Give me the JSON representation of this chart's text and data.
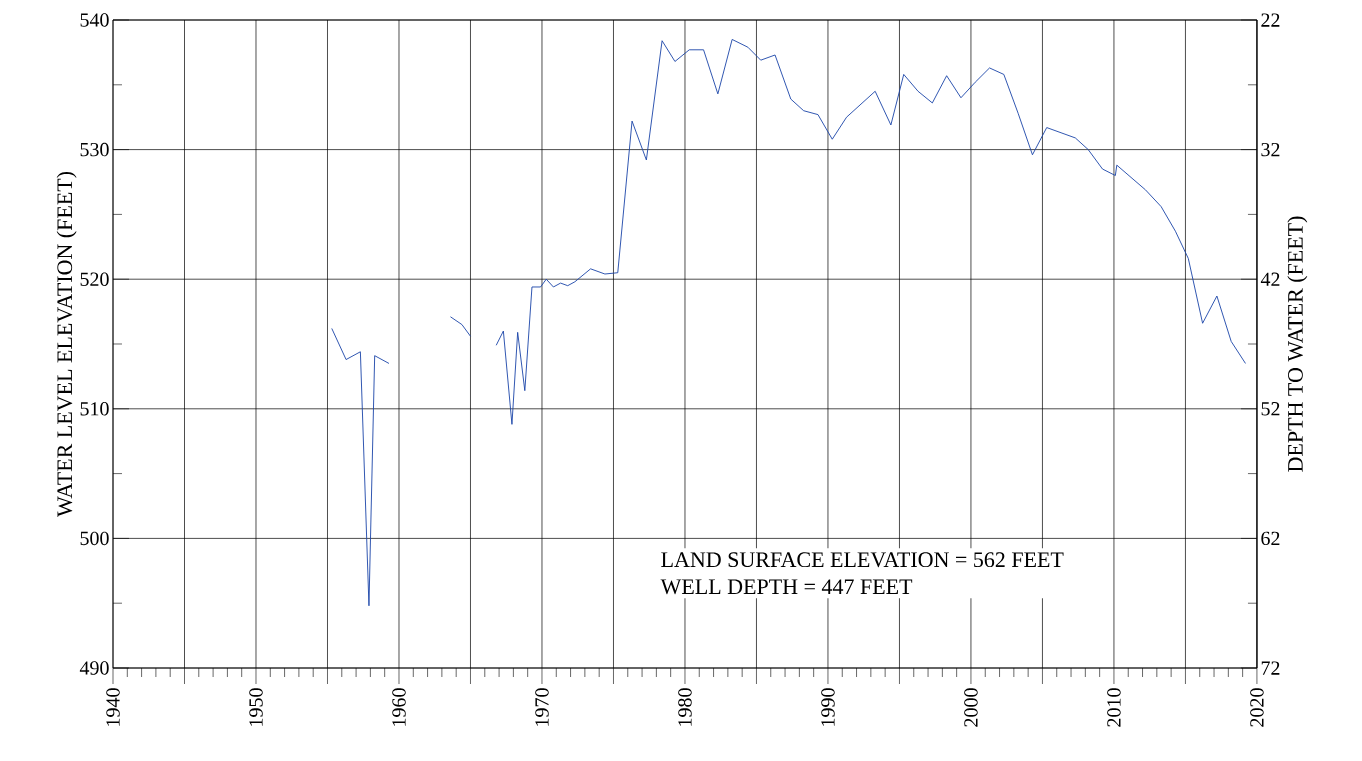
{
  "chart_data": {
    "type": "line",
    "ylabel": "WATER LEVEL ELEVATION (FEET)",
    "y2label": "DEPTH TO WATER (FEET)",
    "annotations": [
      "LAND SURFACE ELEVATION = 562 FEET",
      "WELL DEPTH = 447 FEET"
    ],
    "xlim": [
      1940,
      2020
    ],
    "xticks": [
      1940,
      {
        "value": 1945,
        "label": null
      },
      1950,
      {
        "value": 1955,
        "label": null
      },
      1960,
      {
        "value": 1965,
        "label": null
      },
      1970,
      {
        "value": 1975,
        "label": null
      },
      1980,
      {
        "value": 1985,
        "label": null
      },
      1990,
      {
        "value": 1995,
        "label": null
      },
      2000,
      {
        "value": 2005,
        "label": null
      },
      2010,
      {
        "value": 2015,
        "label": null
      },
      2020
    ],
    "ylim": [
      490,
      540
    ],
    "yticks": [
      490,
      500,
      510,
      520,
      530,
      540
    ],
    "y2lim": [
      72,
      22
    ],
    "y2ticks": [
      22,
      32,
      42,
      52,
      62,
      72
    ],
    "grid": true,
    "x": [
      1955.3,
      1956.3,
      1957.3,
      1957.9,
      1958.3,
      1959.3,
      1961.5,
      1963.6,
      1964.4,
      1965.0,
      1966.0,
      1966.8,
      1967.3,
      1967.9,
      1968.3,
      1968.8,
      1969.3,
      1969.9,
      1970.3,
      1970.8,
      1971.3,
      1971.8,
      1972.3,
      1973.4,
      1974.4,
      1975.3,
      1976.3,
      1977.3,
      1978.4,
      1979.3,
      1980.3,
      1981.3,
      1982.3,
      1983.3,
      1984.4,
      1985.3,
      1986.3,
      1987.4,
      1988.3,
      1989.3,
      1990.3,
      1991.3,
      1993.3,
      1994.4,
      1995.3,
      1996.3,
      1997.3,
      1998.3,
      1999.3,
      2000.3,
      2001.3,
      2002.3,
      2003.3,
      2004.3,
      2005.3,
      2006.3,
      2007.3,
      2008.2,
      2009.2,
      2010.1,
      2010.2,
      2012.2,
      2013.3,
      2014.3,
      2015.2,
      2016.2,
      2017.2,
      2018.2,
      2019.2
    ],
    "series": [
      {
        "color": "#1a44a8",
        "values": [
          516.2,
          513.8,
          514.4,
          494.8,
          514.1,
          513.5,
          null,
          517.1,
          516.5,
          515.6,
          null,
          514.9,
          516.0,
          508.8,
          515.9,
          511.4,
          519.4,
          519.4,
          520.0,
          519.4,
          519.7,
          519.5,
          519.8,
          520.8,
          520.4,
          520.5,
          532.2,
          529.2,
          538.4,
          536.8,
          537.7,
          537.7,
          534.3,
          538.5,
          537.9,
          536.9,
          537.3,
          533.9,
          533.0,
          532.7,
          530.8,
          532.5,
          534.5,
          531.9,
          535.8,
          534.5,
          533.6,
          535.7,
          534.0,
          535.2,
          536.3,
          535.8,
          532.8,
          529.6,
          531.7,
          531.3,
          530.9,
          530.0,
          528.5,
          528.0,
          528.8,
          526.9,
          525.6,
          523.7,
          521.6,
          516.6,
          518.7,
          515.2,
          513.5
        ]
      }
    ]
  }
}
